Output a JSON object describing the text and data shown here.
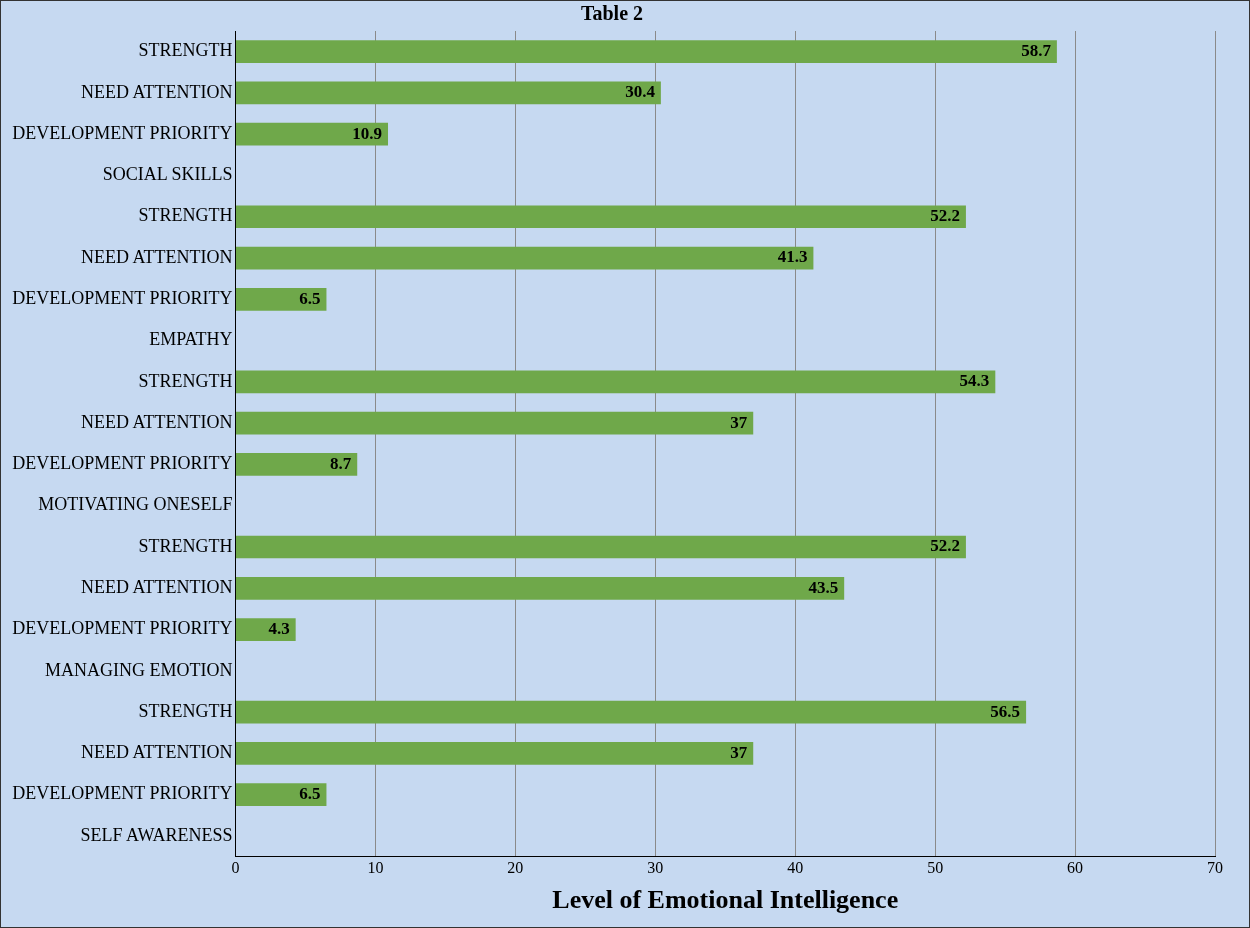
{
  "chart_data": {
    "type": "bar",
    "orientation": "horizontal",
    "title": "Table 2",
    "xlabel": "Level of Emotional Intelligence",
    "categories": [
      "STRENGTH",
      "NEED ATTENTION",
      "DEVELOPMENT PRIORITY",
      "SOCIAL SKILLS",
      "STRENGTH",
      "NEED ATTENTION",
      "DEVELOPMENT PRIORITY",
      "EMPATHY",
      "STRENGTH",
      "NEED ATTENTION",
      "DEVELOPMENT PRIORITY",
      "MOTIVATING ONESELF",
      "STRENGTH",
      "NEED ATTENTION",
      "DEVELOPMENT PRIORITY",
      "MANAGING EMOTION",
      "STRENGTH",
      "NEED ATTENTION",
      "DEVELOPMENT PRIORITY",
      "SELF AWARENESS"
    ],
    "values": [
      58.7,
      30.4,
      10.9,
      null,
      52.2,
      41.3,
      6.5,
      null,
      54.3,
      37,
      8.7,
      null,
      52.2,
      43.5,
      4.3,
      null,
      56.5,
      37,
      6.5,
      null
    ],
    "color": "#6fa84a",
    "xlim": [
      0,
      70
    ],
    "xticks": [
      0,
      10,
      20,
      30,
      40,
      50,
      60,
      70
    ],
    "grid": "x",
    "data_labels": true,
    "legend": false
  }
}
